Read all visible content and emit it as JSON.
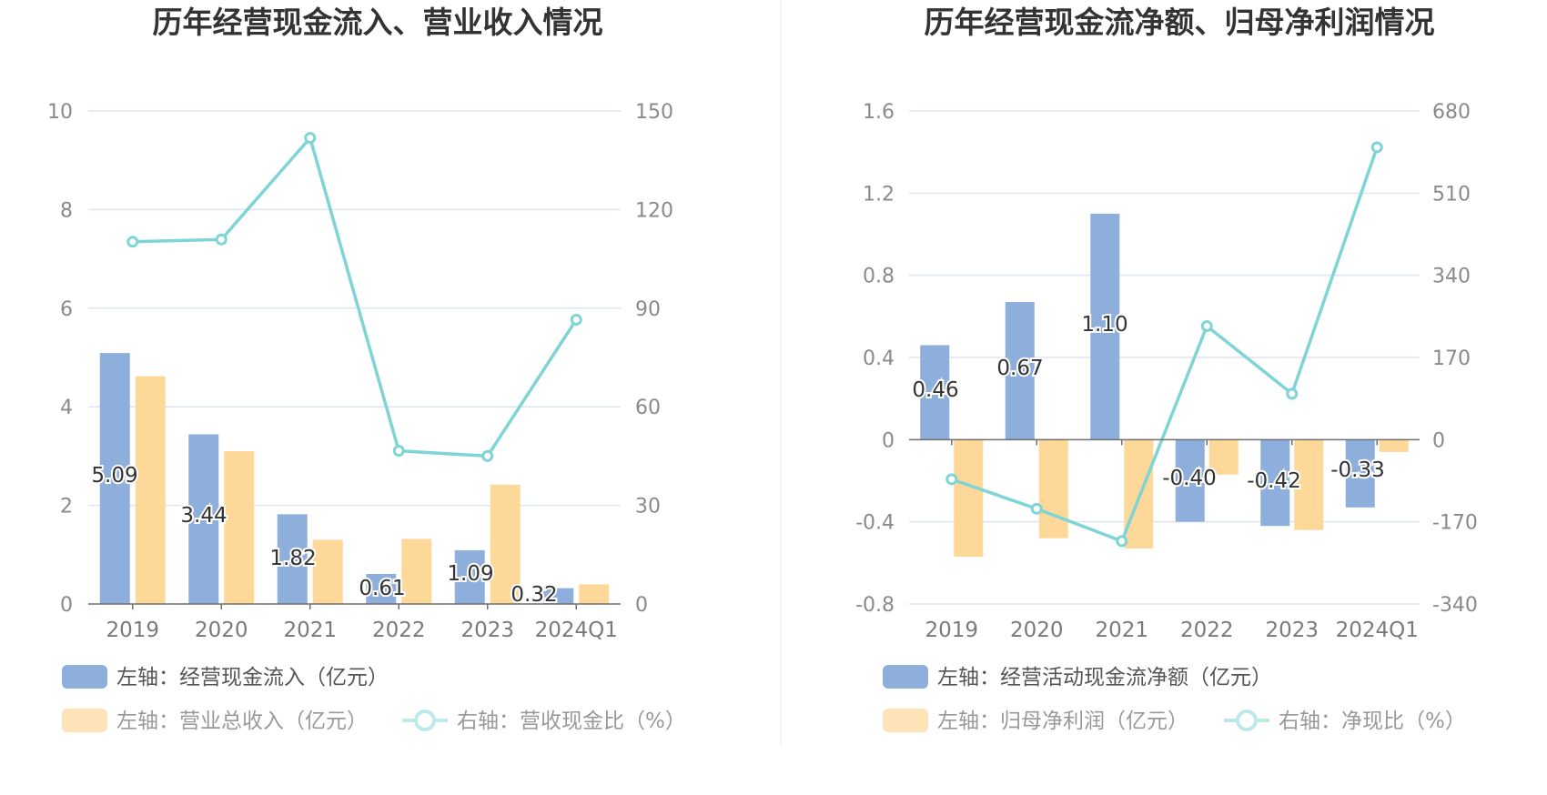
{
  "chart_data": [
    {
      "type": "bar",
      "title": "历年经营现金流入、营业收入情况",
      "categories": [
        "2019",
        "2020",
        "2021",
        "2022",
        "2023",
        "2024Q1"
      ],
      "left_axis": {
        "ylim": [
          0,
          10
        ],
        "ticks": [
          "0",
          "2",
          "4",
          "6",
          "8",
          "10"
        ]
      },
      "right_axis": {
        "ylim": [
          0,
          150
        ],
        "ticks": [
          "0",
          "30",
          "60",
          "90",
          "120",
          "150"
        ]
      },
      "series": [
        {
          "name": "左轴：经营现金流入（亿元）",
          "axis": "left",
          "kind": "bar",
          "color": "#8eaedb",
          "values": [
            5.09,
            3.44,
            1.82,
            0.61,
            1.09,
            0.32
          ],
          "labels": [
            "5.09",
            "3.44",
            "1.82",
            "0.61",
            "1.09",
            "0.32"
          ]
        },
        {
          "name": "左轴：营业总收入（亿元）",
          "axis": "left",
          "kind": "bar",
          "color": "#fdd899",
          "values": [
            4.62,
            3.1,
            1.3,
            1.32,
            2.42,
            0.4
          ]
        },
        {
          "name": "右轴：营收现金比（%）",
          "axis": "right",
          "kind": "line",
          "color": "#7fd4d6",
          "values": [
            110.2,
            110.9,
            141.8,
            46.6,
            45.0,
            86.5
          ]
        }
      ],
      "grid": true,
      "legend_position": "bottom"
    },
    {
      "type": "bar",
      "title": "历年经营现金流净额、归母净利润情况",
      "categories": [
        "2019",
        "2020",
        "2021",
        "2022",
        "2023",
        "2024Q1"
      ],
      "left_axis": {
        "ylim": [
          -0.8,
          1.6
        ],
        "ticks": [
          "-0.8",
          "-0.4",
          "0",
          "0.4",
          "0.8",
          "1.2",
          "1.6"
        ]
      },
      "right_axis": {
        "ylim": [
          -340,
          680
        ],
        "ticks": [
          "-340",
          "-170",
          "0",
          "170",
          "340",
          "510",
          "680"
        ]
      },
      "series": [
        {
          "name": "左轴：经营活动现金流净额（亿元）",
          "axis": "left",
          "kind": "bar",
          "color": "#8eaedb",
          "values": [
            0.46,
            0.67,
            1.1,
            -0.4,
            -0.42,
            -0.33
          ],
          "labels": [
            "0.46",
            "0.67",
            "1.10",
            "-0.40",
            "-0.42",
            "-0.33"
          ]
        },
        {
          "name": "左轴：归母净利润（亿元）",
          "axis": "left",
          "kind": "bar",
          "color": "#fdd899",
          "values": [
            -0.57,
            -0.48,
            -0.53,
            -0.17,
            -0.44,
            -0.06
          ]
        },
        {
          "name": "右轴：净现比（%）",
          "axis": "right",
          "kind": "line",
          "color": "#7fd4d6",
          "values": [
            -82,
            -143,
            -210,
            235,
            95,
            605
          ]
        }
      ],
      "grid": true,
      "legend_position": "bottom"
    }
  ],
  "colors": {
    "bar_primary": "#8eaedb",
    "bar_secondary": "#fdd899",
    "line": "#7fd4d6",
    "divider": "#eeeeee"
  }
}
